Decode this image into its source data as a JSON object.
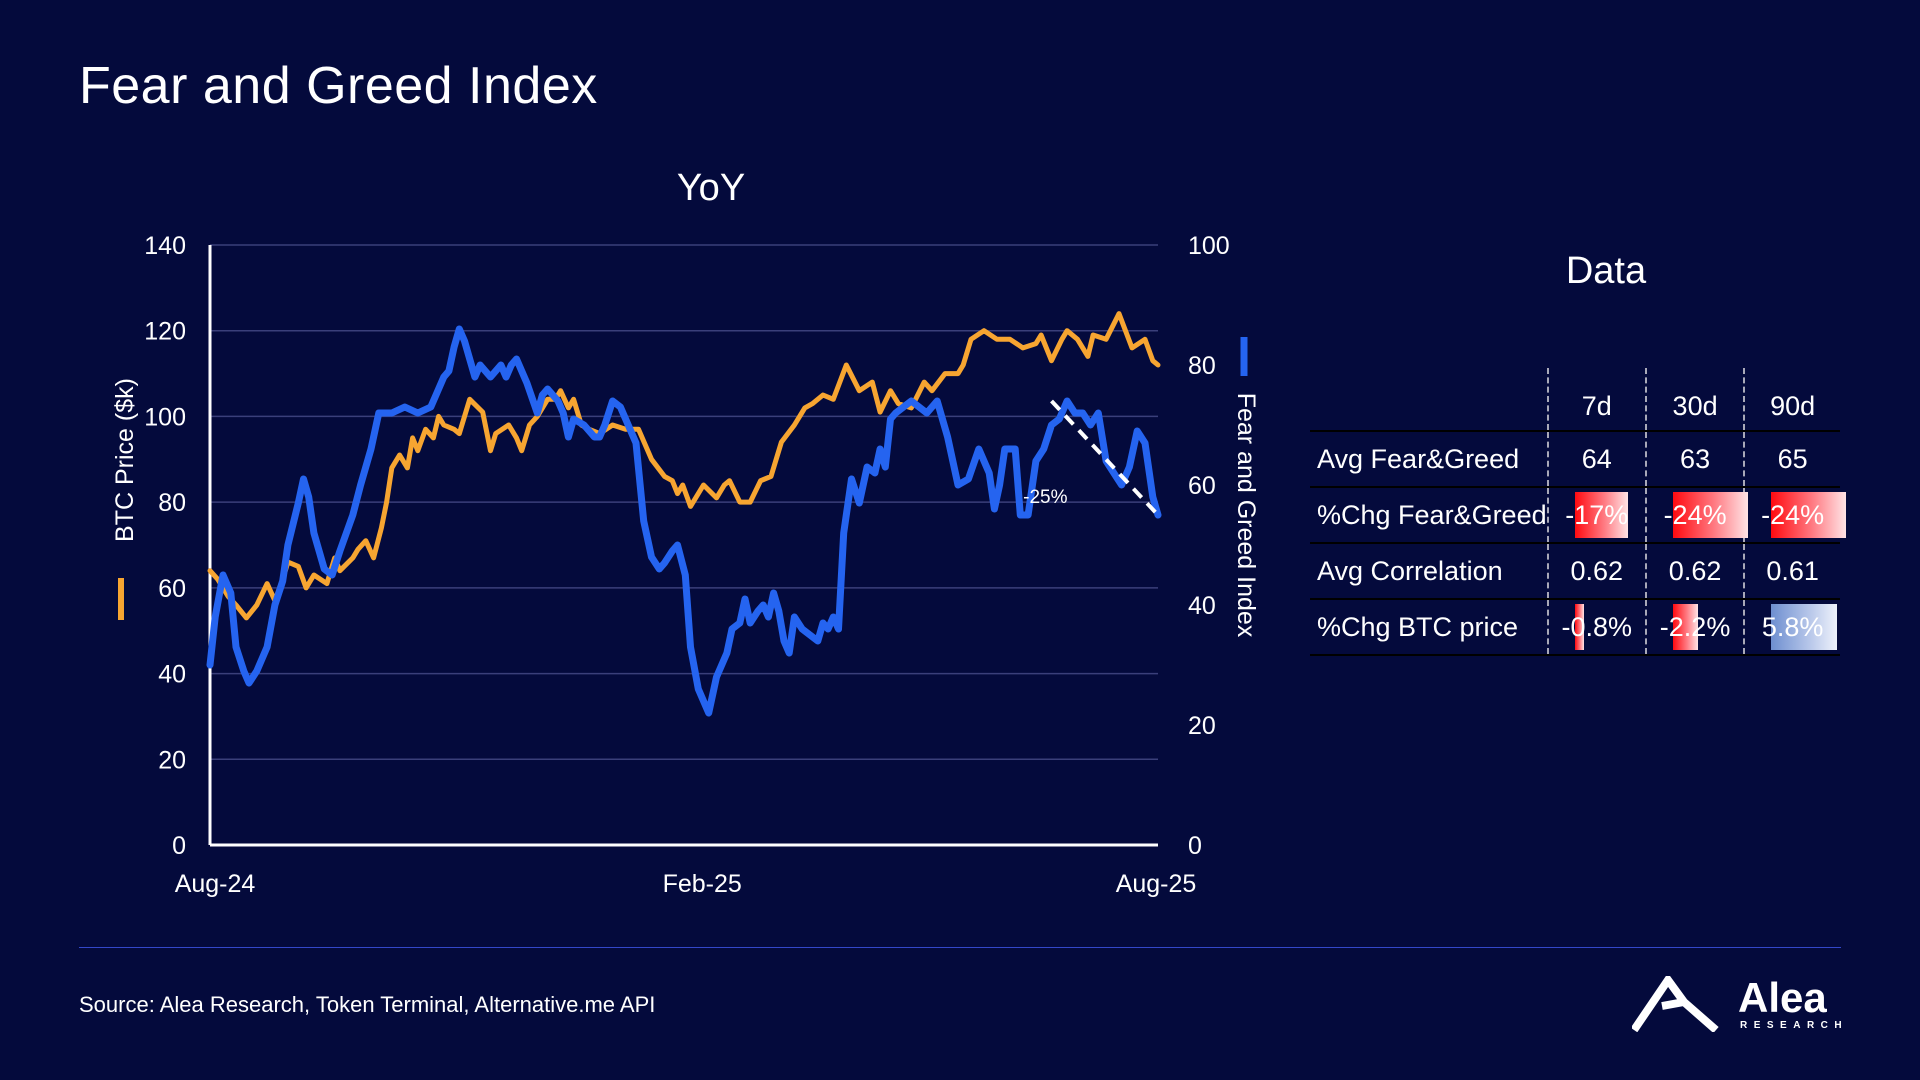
{
  "page": {
    "title": "Fear and Greed Index",
    "source": "Source: Alea Research, Token Terminal, Alternative.me API",
    "logo_word": "Alea",
    "logo_sub": "RESEARCH"
  },
  "colors": {
    "background": "#040a3c",
    "btc": "#f7a531",
    "fng": "#2564f0",
    "rule": "#3347c9"
  },
  "chart_data": {
    "type": "line",
    "title": "YoY",
    "ylabel": "BTC Price ($k)",
    "y2label": "Fear and Greed Index",
    "ylim": [
      0,
      140
    ],
    "y2lim": [
      0,
      100
    ],
    "yticks": [
      "0",
      "20",
      "40",
      "60",
      "80",
      "100",
      "120",
      "140"
    ],
    "y2ticks": [
      "0",
      "20",
      "40",
      "60",
      "80",
      "100"
    ],
    "xticks": [
      "Aug-24",
      "Feb-25",
      "Aug-25"
    ],
    "xrange_days": 365,
    "grid": true,
    "annotation": {
      "text": "-25%",
      "from": [
        324,
        74
      ],
      "to": [
        365,
        55
      ]
    },
    "series": [
      {
        "name": "BTC Price ($k)",
        "axis": "left",
        "x": [
          0,
          3,
          7,
          10,
          14,
          18,
          22,
          25,
          28,
          30,
          34,
          37,
          40,
          45,
          48,
          50,
          55,
          57,
          60,
          63,
          66,
          68,
          70,
          73,
          76,
          78,
          80,
          83,
          86,
          88,
          90,
          94,
          96,
          100,
          105,
          108,
          110,
          115,
          118,
          120,
          123,
          126,
          130,
          133,
          135,
          138,
          140,
          143,
          146,
          150,
          155,
          160,
          165,
          170,
          175,
          178,
          180,
          182,
          185,
          190,
          195,
          198,
          200,
          204,
          208,
          212,
          216,
          220,
          225,
          229,
          232,
          236,
          240,
          245,
          250,
          255,
          258,
          262,
          265,
          270,
          275,
          278,
          283,
          288,
          290,
          293,
          298,
          303,
          308,
          313,
          318,
          320,
          324,
          328,
          330,
          334,
          338,
          340,
          345,
          350,
          355,
          360,
          363,
          365
        ],
        "values": [
          64,
          62,
          58,
          56,
          53,
          56,
          61,
          57,
          62,
          66,
          65,
          60,
          63,
          61,
          67,
          64,
          67,
          69,
          71,
          67,
          74,
          80,
          88,
          91,
          88,
          95,
          92,
          97,
          95,
          100,
          98,
          97,
          96,
          104,
          101,
          92,
          96,
          98,
          95,
          92,
          98,
          100,
          104,
          104,
          106,
          102,
          104,
          98,
          97,
          96,
          98,
          97,
          97,
          90,
          86,
          85,
          82,
          84,
          79,
          84,
          81,
          84,
          85,
          80,
          80,
          85,
          86,
          94,
          98,
          102,
          103,
          105,
          104,
          112,
          106,
          108,
          101,
          106,
          103,
          102,
          108,
          106,
          110,
          110,
          112,
          118,
          120,
          118,
          118,
          116,
          117,
          119,
          113,
          118,
          120,
          118,
          114,
          119,
          118,
          124,
          116,
          118,
          113,
          112
        ]
      },
      {
        "name": "Fear and Greed Index",
        "axis": "right",
        "x": [
          0,
          2,
          5,
          8,
          10,
          13,
          15,
          18,
          22,
          25,
          28,
          30,
          34,
          36,
          38,
          40,
          42,
          44,
          47,
          50,
          55,
          58,
          62,
          65,
          70,
          75,
          80,
          85,
          88,
          90,
          92,
          94,
          96,
          98,
          100,
          102,
          104,
          108,
          112,
          114,
          116,
          118,
          122,
          126,
          128,
          130,
          134,
          136,
          138,
          140,
          144,
          148,
          150,
          152,
          155,
          158,
          161,
          164,
          167,
          170,
          173,
          175,
          178,
          180,
          183,
          185,
          188,
          192,
          195,
          197,
          199,
          201,
          204,
          206,
          208,
          211,
          213,
          215,
          217,
          219,
          221,
          223,
          225,
          228,
          231,
          234,
          236,
          238,
          240,
          242,
          244,
          247,
          250,
          253,
          256,
          258,
          260,
          262,
          264,
          267,
          270,
          273,
          276,
          280,
          284,
          288,
          292,
          296,
          300,
          302,
          304,
          306,
          308,
          310,
          312,
          315,
          318,
          321,
          324,
          327,
          330,
          333,
          336,
          339,
          342,
          345,
          348,
          351,
          354,
          357,
          360,
          363,
          365
        ],
        "values": [
          30,
          38,
          45,
          42,
          33,
          29,
          27,
          29,
          33,
          40,
          44,
          50,
          57,
          61,
          58,
          52,
          49,
          46,
          45,
          49,
          55,
          60,
          66,
          72,
          72,
          73,
          72,
          73,
          76,
          78,
          79,
          83,
          86,
          84,
          81,
          78,
          80,
          78,
          80,
          78,
          80,
          81,
          77,
          72,
          75,
          76,
          74,
          72,
          68,
          71,
          70,
          68,
          68,
          70,
          74,
          73,
          70,
          67,
          54,
          48,
          46,
          47,
          49,
          50,
          45,
          33,
          26,
          22,
          28,
          30,
          32,
          36,
          37,
          41,
          37,
          39,
          40,
          38,
          42,
          39,
          34,
          32,
          38,
          36,
          35,
          34,
          37,
          36,
          38,
          36,
          52,
          61,
          57,
          63,
          62,
          66,
          63,
          71,
          72,
          73,
          74,
          73,
          72,
          74,
          68,
          60,
          61,
          66,
          62,
          56,
          60,
          66,
          66,
          66,
          55,
          55,
          64,
          66,
          70,
          71,
          74,
          72,
          72,
          70,
          72,
          64,
          62,
          60,
          63,
          69,
          67,
          58,
          55
        ]
      }
    ]
  },
  "table": {
    "title": "Data",
    "columns": [
      "7d",
      "30d",
      "90d"
    ],
    "rows": [
      {
        "label": "Avg Fear&Greed",
        "cells": [
          {
            "text": "64"
          },
          {
            "text": "63"
          },
          {
            "text": "65"
          }
        ]
      },
      {
        "label": "%Chg Fear&Greed",
        "cells": [
          {
            "text": "-17%",
            "bar": 0.71,
            "color": "red"
          },
          {
            "text": "-24%",
            "bar": 1.0,
            "color": "red"
          },
          {
            "text": "-24%",
            "bar": 1.0,
            "color": "red"
          }
        ]
      },
      {
        "label": "Avg Correlation",
        "cells": [
          {
            "text": "0.62"
          },
          {
            "text": "0.62"
          },
          {
            "text": "0.61"
          }
        ]
      },
      {
        "label": "%Chg BTC price",
        "cells": [
          {
            "text": "-0.8%",
            "bar": 0.12,
            "color": "red"
          },
          {
            "text": "-2.2%",
            "bar": 0.33,
            "color": "red"
          },
          {
            "text": "5.8%",
            "bar": 0.88,
            "color": "blue"
          }
        ]
      }
    ]
  }
}
